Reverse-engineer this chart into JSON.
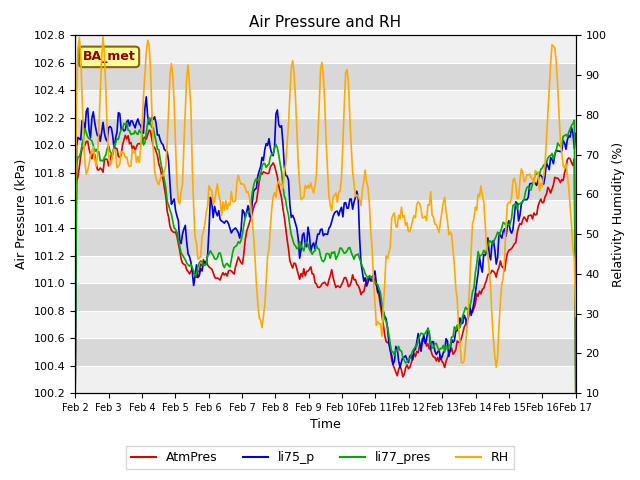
{
  "title": "Air Pressure and RH",
  "xlabel": "Time",
  "ylabel_left": "Air Pressure (kPa)",
  "ylabel_right": "Relativity Humidity (%)",
  "ylim_left": [
    100.2,
    102.8
  ],
  "ylim_right": [
    10,
    100
  ],
  "yticks_left": [
    100.2,
    100.4,
    100.6,
    100.8,
    101.0,
    101.2,
    101.4,
    101.6,
    101.8,
    102.0,
    102.2,
    102.4,
    102.6,
    102.8
  ],
  "yticks_right": [
    10,
    20,
    30,
    40,
    50,
    60,
    70,
    80,
    90,
    100
  ],
  "xtick_labels": [
    "Feb 2",
    "Feb 3",
    "Feb 4",
    "Feb 5",
    "Feb 6",
    "Feb 7",
    "Feb 8",
    "Feb 9",
    "Feb 10",
    "Feb 11",
    "Feb 12",
    "Feb 13",
    "Feb 14",
    "Feb 15",
    "Feb 16",
    "Feb 17"
  ],
  "colors": {
    "AtmPres": "#dd0000",
    "li75_p": "#0000dd",
    "li77_pres": "#00aa00",
    "RH": "#ffaa00"
  },
  "annotation_text": "BA_met",
  "annotation_facecolor": "#ffff99",
  "annotation_edgecolor": "#886600",
  "annotation_textcolor": "#880000",
  "background_color": "#ffffff",
  "plot_bg_color": "#e8e8e8",
  "band_color_light": "#f0f0f0",
  "band_color_dark": "#d8d8d8",
  "grid_line_color": "#ffffff",
  "title_fontsize": 11,
  "n_days": 15,
  "n_points": 360
}
